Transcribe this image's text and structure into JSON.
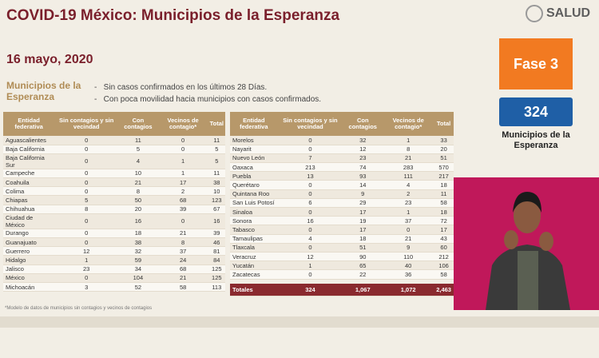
{
  "header": {
    "title": "COVID-19 México: Municipios de la Esperanza",
    "logo": "SALUD"
  },
  "date": "16 mayo, 2020",
  "definition": {
    "term": "Municipios de la Esperanza",
    "items": [
      "Sin casos confirmados en los últimos 28 Días.",
      "Con poca movilidad hacia municipios con casos confirmados."
    ]
  },
  "columns": [
    "Entidad federativa",
    "Sin contagios y sin vecindad",
    "Con contagios",
    "Vecinos de contagio*",
    "Total"
  ],
  "tables": [
    {
      "rows": [
        [
          "Aguascalientes",
          0,
          11,
          0,
          11
        ],
        [
          "Baja California",
          0,
          5,
          0,
          5
        ],
        [
          "Baja California Sur",
          0,
          4,
          1,
          5
        ],
        [
          "Campeche",
          0,
          10,
          1,
          11
        ],
        [
          "Coahuila",
          0,
          21,
          17,
          38
        ],
        [
          "Colima",
          0,
          8,
          2,
          10
        ],
        [
          "Chiapas",
          5,
          50,
          68,
          123
        ],
        [
          "Chihuahua",
          8,
          20,
          39,
          67
        ],
        [
          "Ciudad de México",
          0,
          16,
          0,
          16
        ],
        [
          "Durango",
          0,
          18,
          21,
          39
        ],
        [
          "Guanajuato",
          0,
          38,
          8,
          46
        ],
        [
          "Guerrero",
          12,
          32,
          37,
          81
        ],
        [
          "Hidalgo",
          1,
          59,
          24,
          84
        ],
        [
          "Jalisco",
          23,
          34,
          68,
          125
        ],
        [
          "México",
          0,
          104,
          21,
          125
        ],
        [
          "Michoacán",
          3,
          52,
          58,
          113
        ]
      ]
    },
    {
      "rows": [
        [
          "Morelos",
          0,
          32,
          1,
          33
        ],
        [
          "Nayarit",
          0,
          12,
          8,
          20
        ],
        [
          "Nuevo León",
          7,
          23,
          21,
          51
        ],
        [
          "Oaxaca",
          213,
          74,
          283,
          570
        ],
        [
          "Puebla",
          13,
          93,
          111,
          217
        ],
        [
          "Querétaro",
          0,
          14,
          4,
          18
        ],
        [
          "Quintana Roo",
          0,
          9,
          2,
          11
        ],
        [
          "San Luis Potosí",
          6,
          29,
          23,
          58
        ],
        [
          "Sinaloa",
          0,
          17,
          1,
          18
        ],
        [
          "Sonora",
          16,
          19,
          37,
          72
        ],
        [
          "Tabasco",
          0,
          17,
          0,
          17
        ],
        [
          "Tamaulipas",
          4,
          18,
          21,
          43
        ],
        [
          "Tlaxcala",
          0,
          51,
          9,
          60
        ],
        [
          "Veracruz",
          12,
          90,
          110,
          212
        ],
        [
          "Yucatán",
          1,
          65,
          40,
          106
        ],
        [
          "Zacatecas",
          0,
          22,
          36,
          58
        ]
      ],
      "totals": [
        "Totales",
        324,
        "1,067",
        "1,072",
        "2,463"
      ]
    }
  ],
  "footnote": "*Modelo de datos de municipios sin contagios y vecinos de contagios",
  "sidebar": {
    "phase": "Fase 3",
    "count": 324,
    "count_label": "Municipios de la Esperanza"
  }
}
